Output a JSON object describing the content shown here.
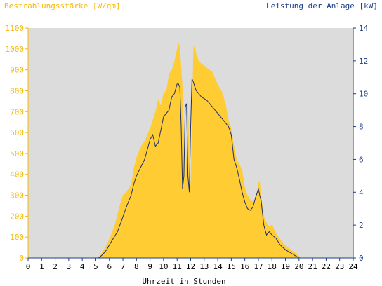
{
  "chart_data": {
    "type": "area",
    "left_axis": {
      "title": "Bestrahlungsstärke [W/qm]",
      "min": 0,
      "max": 1100,
      "ticks": [
        "0",
        "100",
        "200",
        "300",
        "400",
        "500",
        "600",
        "700",
        "800",
        "900",
        "1000",
        "1100"
      ]
    },
    "right_axis": {
      "title": "Leistung der Anlage [kW]",
      "min": 0,
      "max": 14,
      "ticks": [
        "0",
        "2",
        "4",
        "6",
        "8",
        "10",
        "12",
        "14"
      ]
    },
    "x_axis": {
      "title": "Uhrzeit in Stunden",
      "min": 0,
      "max": 24,
      "ticks": [
        "0",
        "1",
        "2",
        "3",
        "4",
        "5",
        "6",
        "7",
        "8",
        "9",
        "10",
        "11",
        "12",
        "13",
        "14",
        "15",
        "16",
        "17",
        "18",
        "19",
        "20",
        "21",
        "22",
        "23",
        "24"
      ]
    },
    "grid": false,
    "colors": {
      "irradiance": "#ffcc33",
      "power": "#1c2f6e",
      "plot_bg": "#dcdcdc",
      "left_axis": "#f7b900",
      "right_axis": "#1c3f8a"
    },
    "series": [
      {
        "axis": "left",
        "x": [
          0,
          5,
          5.3,
          5.6,
          6.0,
          6.4,
          6.8,
          7.0,
          7.3,
          7.6,
          7.8,
          8.0,
          8.3,
          8.6,
          8.8,
          9.0,
          9.2,
          9.4,
          9.6,
          9.8,
          10.0,
          10.2,
          10.4,
          10.6,
          10.8,
          11.0,
          11.1,
          11.2,
          11.4,
          11.6,
          11.7,
          11.8,
          11.9,
          12.0,
          12.1,
          12.2,
          12.3,
          12.4,
          12.5,
          12.6,
          12.8,
          13.0,
          13.2,
          13.4,
          13.6,
          13.8,
          14.0,
          14.2,
          14.4,
          14.6,
          14.8,
          15.0,
          15.2,
          15.4,
          15.6,
          15.8,
          16.0,
          16.2,
          16.4,
          16.6,
          16.8,
          17.0,
          17.1,
          17.2,
          17.4,
          17.6,
          17.8,
          18.0,
          18.3,
          18.6,
          19.0,
          19.4,
          19.8,
          20.0,
          20.2,
          20.5,
          24
        ],
        "y": [
          0,
          0,
          10,
          40,
          90,
          160,
          260,
          300,
          320,
          350,
          430,
          480,
          530,
          560,
          590,
          620,
          660,
          700,
          760,
          730,
          790,
          800,
          880,
          900,
          940,
          1000,
          1030,
          1010,
          820,
          360,
          500,
          760,
          500,
          340,
          680,
          1000,
          1020,
          980,
          960,
          940,
          930,
          920,
          910,
          900,
          890,
          860,
          830,
          810,
          780,
          730,
          660,
          620,
          540,
          470,
          450,
          420,
          340,
          300,
          280,
          270,
          280,
          360,
          370,
          300,
          200,
          170,
          150,
          160,
          120,
          90,
          60,
          40,
          20,
          10,
          0,
          0,
          0
        ]
      },
      {
        "axis": "right",
        "x": [
          0,
          5.2,
          5.5,
          5.8,
          6.0,
          6.3,
          6.6,
          7.0,
          7.3,
          7.6,
          7.8,
          8.0,
          8.3,
          8.6,
          8.8,
          9.0,
          9.2,
          9.4,
          9.6,
          9.8,
          10.0,
          10.2,
          10.4,
          10.6,
          10.8,
          11.0,
          11.1,
          11.2,
          11.3,
          11.4,
          11.5,
          11.6,
          11.7,
          11.8,
          11.9,
          12.0,
          12.1,
          12.2,
          12.4,
          12.6,
          12.8,
          13.0,
          13.2,
          13.4,
          13.6,
          13.8,
          14.0,
          14.2,
          14.4,
          14.6,
          14.8,
          15.0,
          15.2,
          15.4,
          15.6,
          15.8,
          16.0,
          16.2,
          16.4,
          16.6,
          16.8,
          17.0,
          17.1,
          17.2,
          17.4,
          17.6,
          17.8,
          18.0,
          18.3,
          18.6,
          19.0,
          19.4,
          19.8,
          20.0,
          20.2,
          24
        ],
        "y": [
          0,
          0,
          0.2,
          0.5,
          0.8,
          1.2,
          1.6,
          2.5,
          3.2,
          3.8,
          4.5,
          5.0,
          5.5,
          6.0,
          6.6,
          7.2,
          7.5,
          6.8,
          7.0,
          7.8,
          8.6,
          8.8,
          9.0,
          9.8,
          10.0,
          10.6,
          10.6,
          10.4,
          8.0,
          4.2,
          5.0,
          9.2,
          9.4,
          5.0,
          4.0,
          8.0,
          10.9,
          10.7,
          10.2,
          10.0,
          9.8,
          9.7,
          9.6,
          9.4,
          9.2,
          9.0,
          8.8,
          8.6,
          8.4,
          8.2,
          8.0,
          7.5,
          6.0,
          5.5,
          4.8,
          4.0,
          3.4,
          3.0,
          2.9,
          3.1,
          3.7,
          4.2,
          3.8,
          3.5,
          2.0,
          1.4,
          1.6,
          1.4,
          1.2,
          0.8,
          0.5,
          0.3,
          0.1,
          0,
          0,
          0
        ]
      }
    ]
  }
}
